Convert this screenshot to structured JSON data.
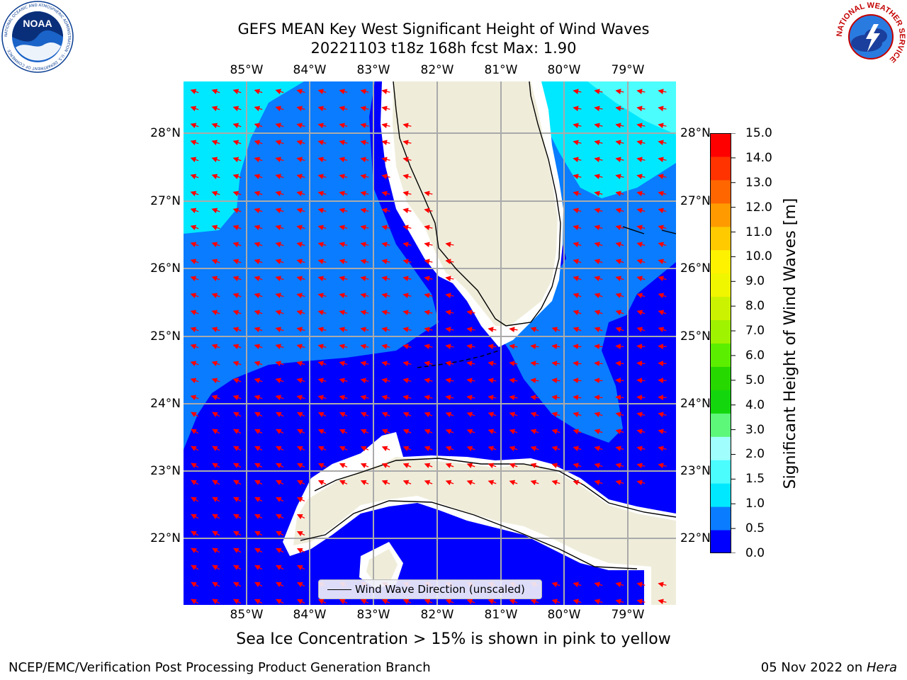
{
  "title": {
    "line1": "GEFS MEAN Key West Significant Height of Wind Waves",
    "line2": "20221103 t18z 168h fcst   Max: 1.90"
  },
  "map": {
    "lon_ticks": [
      "85°W",
      "84°W",
      "83°W",
      "82°W",
      "81°W",
      "80°W",
      "79°W"
    ],
    "lat_ticks": [
      "28°N",
      "27°N",
      "26°N",
      "25°N",
      "24°N",
      "23°N",
      "22°N"
    ],
    "extent": {
      "lon_min": -86.0,
      "lon_max": -78.2,
      "lat_min": 21.0,
      "lat_max": 28.75
    },
    "legend_label": "Wind Wave Direction (unscaled)",
    "arrow_color": "#ff0000",
    "land_color": "#efedda"
  },
  "colorbar": {
    "label": "Significant Height of Wind Waves [m]",
    "ticks": [
      "15.0",
      "14.0",
      "13.0",
      "12.0",
      "11.0",
      "10.0",
      "9.0",
      "8.0",
      "7.0",
      "6.0",
      "5.0",
      "4.0",
      "3.0",
      "2.0",
      "1.5",
      "1.0",
      "0.5",
      "0.0"
    ],
    "colors": [
      "#0000ff",
      "#0a7cff",
      "#00e8ff",
      "#4cfdfd",
      "#a0fffd",
      "#5df77a",
      "#14d60c",
      "#27d800",
      "#5cee00",
      "#9ff200",
      "#cbf200",
      "#f0f500",
      "#fff200",
      "#ffca00",
      "#ff9a00",
      "#ff6600",
      "#ff3300",
      "#ff0000"
    ]
  },
  "logos": {
    "noaa": "NOAA",
    "noaa_ring": "NATIONAL OCEANIC AND ATMOSPHERIC ADMINISTRATION · U.S. DEPARTMENT OF COMMERCE ·",
    "nws_ring": "NATIONAL WEATHER SERVICE"
  },
  "note": "Sea Ice Concentration > 15% is shown in pink to yellow",
  "footer": {
    "left": "NCEP/EMC/Verification Post Processing Product Generation Branch",
    "date": "05 Nov 2022",
    "on": " on ",
    "machine": "Hera"
  }
}
